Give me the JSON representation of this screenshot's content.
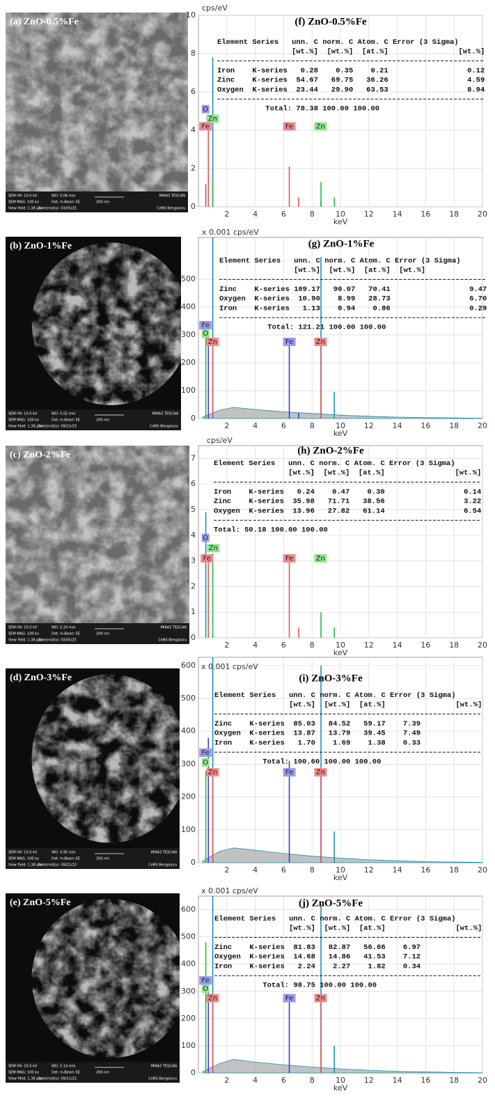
{
  "sem_images": [
    {
      "label": "(a) ZnO-0.5%Fe",
      "hv": "SEM HV: 10.0 kV",
      "wd": "WD: 5.06 mm",
      "brand": "MIRA3 TESCAN",
      "mag": "SEM MAG: 100 kx",
      "det": "Det: In-Beam SE",
      "scale": "200 nm",
      "field": "View field: 1.38 µm",
      "date": "Date(m/d/y): 03/05/25",
      "lab": "CeNS Bengaluru"
    },
    {
      "label": "(b) ZnO-1%Fe",
      "hv": "SEM HV: 10.0 kV",
      "wd": "WD: 5.02 mm",
      "brand": "MIRA3 TESCAN",
      "mag": "SEM MAG: 100 kx",
      "det": "Det: In-Beam SE",
      "scale": "200 nm",
      "field": "View field: 1.38 µm",
      "date": "Date(m/d/y): 09/21/23",
      "lab": "CeNS Bengaluru"
    },
    {
      "label": "(c) ZnO-2%Fe",
      "hv": "SEM HV: 10.0 kV",
      "wd": "WD: 5.24 mm",
      "brand": "MIRA3 TESCAN",
      "mag": "SEM MAG: 100 kx",
      "det": "Det: In-Beam SE",
      "scale": "200 nm",
      "field": "View field: 1.38 µm",
      "date": "Date(m/d/y): 03/05/25",
      "lab": "CeNS Bengaluru"
    },
    {
      "label": "(d) ZnO-3%Fe",
      "hv": "SEM HV: 10.0 kV",
      "wd": "WD: 4.95 mm",
      "brand": "MIRA3 TESCAN",
      "mag": "SEM MAG: 100 kx",
      "det": "Det: In-Beam SE",
      "scale": "200 nm",
      "field": "View field: 1.38 µm",
      "date": "Date(m/d/y): 09/21/23",
      "lab": "CeNS Bengaluru"
    },
    {
      "label": "(e) ZnO-5%Fe",
      "hv": "SEM HV: 10.0 kV",
      "wd": "WD: 5.14 mm",
      "brand": "MIRA3 TESCAN",
      "mag": "SEM MAG: 100 kx",
      "det": "Det: In-Beam SE",
      "scale": "200 nm",
      "field": "View field: 1.38 µm",
      "date": "Date(m/d/y): 09/21/23",
      "lab": "CeNS Bengaluru"
    }
  ],
  "chart_data": [
    {
      "type": "stem",
      "title": "(f) ZnO-0.5%Fe",
      "y_label": "cps/eV",
      "x_label": "keV",
      "xlim": [
        0,
        20
      ],
      "xticks": [
        2,
        4,
        6,
        8,
        10,
        12,
        14,
        16,
        18,
        20
      ],
      "ylim": [
        0,
        10
      ],
      "yticks": [
        0,
        2,
        4,
        6,
        8,
        10
      ],
      "grid": true,
      "series": [
        {
          "color": "#1f8fb0",
          "x": [
            0.52,
            1.01,
            8.63,
            9.57
          ],
          "values": [
            1.0,
            7.8,
            0.3,
            0.2
          ]
        },
        {
          "color": "#22bb44",
          "x": [
            1.01,
            8.63,
            9.57
          ],
          "values": [
            1.4,
            1.3,
            0.5
          ]
        },
        {
          "color": "#e05555",
          "x": [
            0.52,
            0.7,
            6.4,
            7.06
          ],
          "values": [
            1.2,
            4.2,
            2.1,
            0.5
          ]
        }
      ],
      "peak_labels": [
        {
          "text": "O",
          "x": 0.5,
          "y": 5.1,
          "color": "#9a9af0"
        },
        {
          "text": "Zn",
          "x": 1.0,
          "y": 4.6,
          "color": "#8ee88e"
        },
        {
          "text": "Fe",
          "x": 0.5,
          "y": 4.2,
          "color": "#f08a8a"
        },
        {
          "text": "Fe",
          "x": 6.4,
          "y": 4.2,
          "color": "#f08a8a"
        },
        {
          "text": "Zn",
          "x": 8.6,
          "y": 4.2,
          "color": "#8ee88e"
        }
      ],
      "table": {
        "header": "Element Series   unn. C norm. C Atom. C Error (3 Sigma)",
        "units": [
          "[wt.%]",
          "[wt.%]",
          "[at.%]",
          "[wt.%]"
        ],
        "rows": [
          [
            "Iron",
            "K-series",
            "0.28",
            "0.35",
            "0.21",
            "0.12"
          ],
          [
            "Zinc",
            "K-series",
            "54.67",
            "69.75",
            "36.26",
            "4.59"
          ],
          [
            "Oxygen",
            "K-series",
            "23.44",
            "29.90",
            "63.53",
            "8.94"
          ]
        ],
        "total": [
          "Total:",
          "78.38",
          "100.00",
          "100.00"
        ]
      }
    },
    {
      "type": "stem",
      "title": "(g) ZnO-1%Fe",
      "y_label": "x 0.001 cps/eV",
      "x_label": "keV",
      "xlim": [
        0,
        20
      ],
      "xticks": [
        2,
        4,
        6,
        8,
        10,
        12,
        14,
        16,
        18,
        20
      ],
      "ylim": [
        0,
        650
      ],
      "yticks": [
        0,
        100,
        200,
        300,
        400,
        500
      ],
      "grid": true,
      "background": {
        "color": "#a8a8a8",
        "x": [
          0.3,
          1.5,
          2.5,
          4,
          6,
          8,
          10,
          12,
          14,
          16,
          18,
          20
        ],
        "values": [
          5,
          30,
          40,
          32,
          24,
          18,
          12,
          8,
          5,
          3,
          2,
          1
        ]
      },
      "series": [
        {
          "color": "#1f8fb0",
          "x": [
            1.01,
            8.63,
            9.57
          ],
          "values": [
            650,
            580,
            95
          ]
        },
        {
          "color": "#22bb44",
          "x": [
            0.52
          ],
          "values": [
            300
          ]
        },
        {
          "color": "#3a3ae0",
          "x": [
            0.7,
            6.4,
            7.06
          ],
          "values": [
            330,
            280,
            20
          ]
        },
        {
          "color": "#e05555",
          "x": [
            1.01,
            8.63
          ],
          "values": [
            280,
            270
          ]
        }
      ],
      "peak_labels": [
        {
          "text": "Fe",
          "x": 0.5,
          "y": 335,
          "color": "#9a9af0"
        },
        {
          "text": "O",
          "x": 0.5,
          "y": 305,
          "color": "#8ee88e"
        },
        {
          "text": "Zn",
          "x": 1.0,
          "y": 275,
          "color": "#f08a8a"
        },
        {
          "text": "Fe",
          "x": 6.4,
          "y": 275,
          "color": "#9a9af0"
        },
        {
          "text": "Zn",
          "x": 8.6,
          "y": 275,
          "color": "#f08a8a"
        }
      ],
      "table": {
        "header": "Element Series   unn. C norm. C Atom. C Error (3 Sigma)",
        "units": [
          "[wt.%]",
          "[wt.%]",
          "[at.%]",
          "[wt.%]"
        ],
        "rows": [
          [
            "Zinc",
            "K-series",
            "109.17",
            "90.07",
            "70.41",
            "9.47"
          ],
          [
            "Oxygen",
            "K-series",
            "10.90",
            "8.99",
            "28.73",
            "6.70"
          ],
          [
            "Iron",
            "K-series",
            "1.13",
            "0.94",
            "0.86",
            "0.29"
          ]
        ],
        "total": [
          "Total:",
          "121.21",
          "100.00",
          "100.00"
        ]
      }
    },
    {
      "type": "stem",
      "title": "(h) ZnO-2%Fe",
      "y_label": "cps/eV",
      "x_label": "keV",
      "xlim": [
        0,
        20
      ],
      "xticks": [
        2,
        4,
        6,
        8,
        10,
        12,
        14,
        16,
        18,
        20
      ],
      "ylim": [
        0,
        7.5
      ],
      "yticks": [
        0,
        1,
        2,
        3,
        4,
        5,
        6,
        7
      ],
      "grid": true,
      "series": [
        {
          "color": "#1f8fb0",
          "x": [
            0.52
          ],
          "values": [
            4.9
          ]
        },
        {
          "color": "#22bb44",
          "x": [
            1.01,
            8.63,
            9.57
          ],
          "values": [
            3.3,
            1.0,
            0.4
          ]
        },
        {
          "color": "#e05555",
          "x": [
            0.7,
            6.4,
            7.06
          ],
          "values": [
            3.2,
            3.2,
            0.4
          ]
        }
      ],
      "peak_labels": [
        {
          "text": "O",
          "x": 0.5,
          "y": 3.9,
          "color": "#9a9af0"
        },
        {
          "text": "Zn",
          "x": 1.05,
          "y": 3.5,
          "color": "#8ee88e"
        },
        {
          "text": "Fe",
          "x": 0.6,
          "y": 3.1,
          "color": "#f08a8a"
        },
        {
          "text": "Fe",
          "x": 6.4,
          "y": 3.1,
          "color": "#f08a8a"
        },
        {
          "text": "Zn",
          "x": 8.6,
          "y": 3.1,
          "color": "#8ee88e"
        }
      ],
      "table": {
        "header": "Element Series   unn. C norm. C Atom. C Error (3 Sigma)",
        "units": [
          "[wt.%]",
          "[wt.%]",
          "[at.%]",
          "[wt.%]"
        ],
        "rows": [
          [
            "Iron",
            "K-series",
            "0.24",
            "0.47",
            "0.30",
            "0.14"
          ],
          [
            "Zinc",
            "K-series",
            "35.98",
            "71.71",
            "38.56",
            "3.22"
          ],
          [
            "Oxygen",
            "K-series",
            "13.96",
            "27.82",
            "61.14",
            "6.54"
          ]
        ],
        "total": [
          "Total:",
          "50.18",
          "100.00",
          "100.00"
        ]
      }
    },
    {
      "type": "stem",
      "title": "(i) ZnO-3%Fe",
      "y_label": "x 0.001 cps/eV",
      "x_label": "keV",
      "xlim": [
        0,
        20
      ],
      "xticks": [
        2,
        4,
        6,
        8,
        10,
        12,
        14,
        16,
        18,
        20
      ],
      "ylim": [
        0,
        625
      ],
      "yticks": [
        0,
        100,
        200,
        300,
        400,
        500,
        600
      ],
      "grid": true,
      "background": {
        "color": "#a8a8a8",
        "x": [
          0.3,
          1.5,
          2.5,
          4,
          6,
          8,
          10,
          12,
          14,
          16,
          18,
          20
        ],
        "values": [
          5,
          35,
          45,
          38,
          28,
          20,
          14,
          9,
          6,
          3,
          2,
          1
        ]
      },
      "series": [
        {
          "color": "#1f8fb0",
          "x": [
            1.01,
            8.63,
            9.57
          ],
          "values": [
            625,
            600,
            95
          ]
        },
        {
          "color": "#22bb44",
          "x": [
            0.52
          ],
          "values": [
            280
          ]
        },
        {
          "color": "#3a3ae0",
          "x": [
            0.7,
            6.4
          ],
          "values": [
            380,
            310
          ]
        },
        {
          "color": "#e05555",
          "x": [
            1.01,
            8.63
          ],
          "values": [
            280,
            270
          ]
        }
      ],
      "peak_labels": [
        {
          "text": "Fe",
          "x": 0.5,
          "y": 335,
          "color": "#9a9af0"
        },
        {
          "text": "O",
          "x": 0.5,
          "y": 305,
          "color": "#8ee88e"
        },
        {
          "text": "Zn",
          "x": 1.0,
          "y": 275,
          "color": "#f08a8a"
        },
        {
          "text": "Fe",
          "x": 6.4,
          "y": 275,
          "color": "#9a9af0"
        },
        {
          "text": "Zn",
          "x": 8.6,
          "y": 275,
          "color": "#f08a8a"
        }
      ],
      "table": {
        "header": "Element Series   unn. C norm. C Atom. C Error (3 Sigma)",
        "units": [
          "[wt.%]",
          "[wt.%]",
          "[at.%]",
          "[wt.%]"
        ],
        "rows": [
          [
            "Zinc",
            "K-series",
            "85.03",
            "84.52",
            "59.17",
            "7.39"
          ],
          [
            "Oxygen",
            "K-series",
            "13.87",
            "13.79",
            "39.45",
            "7.49"
          ],
          [
            "Iron",
            "K-series",
            "1.70",
            "1.69",
            "1.38",
            "0.33"
          ]
        ],
        "total": [
          "Total:",
          "100.60",
          "100.00",
          "100.00"
        ]
      }
    },
    {
      "type": "stem",
      "title": "(j) ZnO-5%Fe",
      "y_label": "x 0.001 cps/eV",
      "x_label": "keV",
      "xlim": [
        0,
        20
      ],
      "xticks": [
        2,
        4,
        6,
        8,
        10,
        12,
        14,
        16,
        18,
        20
      ],
      "ylim": [
        0,
        650
      ],
      "yticks": [
        0,
        100,
        200,
        300,
        400,
        500,
        600
      ],
      "grid": true,
      "background": {
        "color": "#a8a8a8",
        "x": [
          0.3,
          1.5,
          2.5,
          4,
          6,
          8,
          10,
          12,
          14,
          16,
          18,
          20
        ],
        "values": [
          5,
          35,
          50,
          40,
          30,
          22,
          15,
          10,
          6,
          4,
          2,
          1
        ]
      },
      "series": [
        {
          "color": "#1f8fb0",
          "x": [
            1.01,
            8.63,
            9.57
          ],
          "values": [
            650,
            620,
            100
          ]
        },
        {
          "color": "#22bb44",
          "x": [
            0.52
          ],
          "values": [
            480
          ]
        },
        {
          "color": "#3a3ae0",
          "x": [
            0.7,
            6.4
          ],
          "values": [
            310,
            280
          ]
        },
        {
          "color": "#e05555",
          "x": [
            1.01,
            8.63
          ],
          "values": [
            280,
            270
          ]
        }
      ],
      "peak_labels": [
        {
          "text": "Fe",
          "x": 0.5,
          "y": 340,
          "color": "#9a9af0"
        },
        {
          "text": "O",
          "x": 0.5,
          "y": 310,
          "color": "#8ee88e"
        },
        {
          "text": "Zn",
          "x": 1.0,
          "y": 275,
          "color": "#f08a8a"
        },
        {
          "text": "Fe",
          "x": 6.4,
          "y": 275,
          "color": "#9a9af0"
        },
        {
          "text": "Zn",
          "x": 8.6,
          "y": 275,
          "color": "#f08a8a"
        }
      ],
      "table": {
        "header": "Element Series   unn. C norm. C Atom. C Error (3 Sigma)",
        "units": [
          "[wt.%]",
          "[wt.%]",
          "[at.%]",
          "[wt.%]"
        ],
        "rows": [
          [
            "Zinc",
            "K-series",
            "81.83",
            "82.87",
            "56.66",
            "6.97"
          ],
          [
            "Oxygen",
            "K-series",
            "14.68",
            "14.86",
            "41.53",
            "7.12"
          ],
          [
            "Iron",
            "K-series",
            "2.24",
            "2.27",
            "1.82",
            "0.34"
          ]
        ],
        "total": [
          "Total:",
          "98.75",
          "100.00",
          "100.00"
        ]
      }
    }
  ]
}
